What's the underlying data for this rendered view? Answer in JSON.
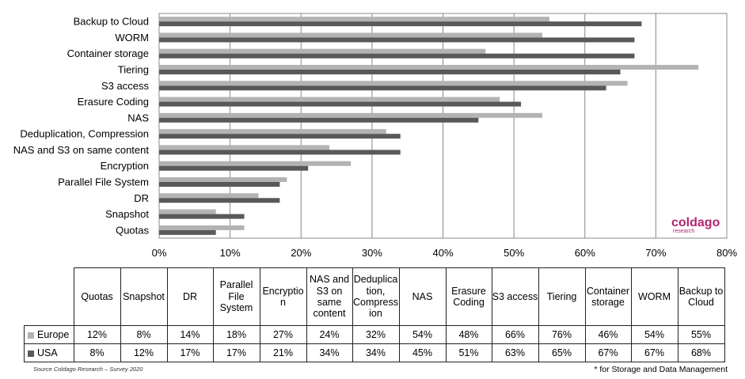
{
  "chart_data": {
    "type": "bar",
    "orientation": "horizontal",
    "categories": [
      "Backup to Cloud",
      "WORM",
      "Container storage",
      "Tiering",
      "S3 access",
      "Erasure Coding",
      "NAS",
      "Deduplication, Compression",
      "NAS and S3 on same content",
      "Encryption",
      "Parallel File System",
      "DR",
      "Snapshot",
      "Quotas"
    ],
    "series": [
      {
        "name": "Europe",
        "color": "#b3b3b3",
        "values": [
          55,
          54,
          46,
          76,
          66,
          48,
          54,
          32,
          24,
          27,
          18,
          14,
          8,
          12
        ]
      },
      {
        "name": "USA",
        "color": "#595959",
        "values": [
          68,
          67,
          67,
          65,
          63,
          51,
          45,
          34,
          34,
          21,
          17,
          17,
          12,
          8
        ]
      }
    ],
    "xlim": [
      0,
      80
    ],
    "xticks": [
      "0%",
      "10%",
      "20%",
      "30%",
      "40%",
      "50%",
      "60%",
      "70%",
      "80%"
    ],
    "grid": true,
    "legend": "table"
  },
  "table": {
    "columns": [
      "Quotas",
      "Snapshot",
      "DR",
      "Parallel File System",
      "Encryptio n",
      "NAS and S3 on same content",
      "Deduplica tion, Compress ion",
      "NAS",
      "Erasure Coding",
      "S3 access",
      "Tiering",
      "Container storage",
      "WORM",
      "Backup to Cloud"
    ],
    "rows": [
      {
        "label": "Europe",
        "color": "#b3b3b3",
        "values": [
          "12%",
          "8%",
          "14%",
          "18%",
          "27%",
          "24%",
          "32%",
          "54%",
          "48%",
          "66%",
          "76%",
          "46%",
          "54%",
          "55%"
        ]
      },
      {
        "label": "USA",
        "color": "#595959",
        "values": [
          "8%",
          "12%",
          "17%",
          "17%",
          "21%",
          "34%",
          "34%",
          "45%",
          "51%",
          "63%",
          "65%",
          "67%",
          "67%",
          "68%"
        ]
      }
    ]
  },
  "logo": {
    "main": "coldago",
    "sub": "research"
  },
  "source_text": "Source Coldago Research – Survey 2020",
  "footnote": "* for Storage and Data Management"
}
